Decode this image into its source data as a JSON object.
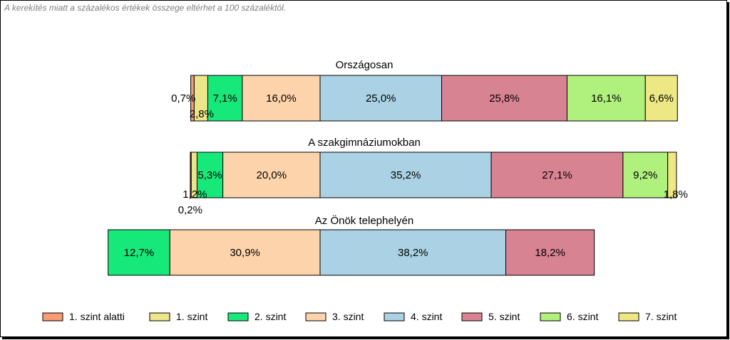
{
  "note": "A kerekítés miatt a  százalékos értékek összege eltérhet a 100 százaléktól.",
  "chart_data": {
    "type": "bar",
    "orientation": "horizontal",
    "stacked": true,
    "aligned_on": "boundary between 3. szint and 4. szint",
    "legend_position": "bottom",
    "grid": false,
    "legend": [
      {
        "name": "1. szint alatti",
        "color": "#f79c74"
      },
      {
        "name": "1. szint",
        "color": "#ede58a"
      },
      {
        "name": "2. szint",
        "color": "#17e87a"
      },
      {
        "name": "3. szint",
        "color": "#fdd3ab"
      },
      {
        "name": "4. szint",
        "color": "#aad2e4"
      },
      {
        "name": "5. szint",
        "color": "#d88392"
      },
      {
        "name": "6. szint",
        "color": "#b0f07c"
      },
      {
        "name": "7. szint",
        "color": "#ede883"
      }
    ],
    "groups": [
      {
        "title": "Országosan",
        "values": [
          0.7,
          2.8,
          7.1,
          16.0,
          25.0,
          25.8,
          16.1,
          6.6
        ],
        "labels": [
          "0,7%",
          "2,8%",
          "7,1%",
          "16,0%",
          "25,0%",
          "25,8%",
          "16,1%",
          "6,6%"
        ]
      },
      {
        "title": "A szakgimnáziumokban",
        "values": [
          0.2,
          1.2,
          5.3,
          20.0,
          35.2,
          27.1,
          9.2,
          1.8
        ],
        "labels": [
          "0,2%",
          "1,2%",
          "5,3%",
          "20,0%",
          "35,2%",
          "27,1%",
          "9,2%",
          "1,8%"
        ]
      },
      {
        "title": "Az Önök telephelyén",
        "values": [
          0,
          0,
          12.7,
          30.9,
          38.2,
          18.2,
          0,
          0
        ],
        "labels": [
          "",
          "",
          "12,7%",
          "30,9%",
          "38,2%",
          "18,2%",
          "",
          ""
        ]
      }
    ]
  }
}
